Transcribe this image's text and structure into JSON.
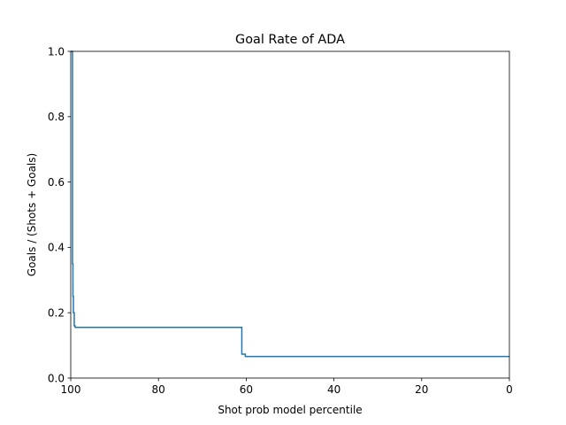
{
  "chart_data": {
    "type": "line",
    "title": "Goal Rate of ADA",
    "xlabel": "Shot prob model percentile",
    "ylabel": "Goals / (Shots + Goals)",
    "xlim": [
      100,
      0
    ],
    "ylim": [
      0.0,
      1.0
    ],
    "x_inverted": true,
    "grid": false,
    "xticks": [
      100,
      80,
      60,
      40,
      20,
      0
    ],
    "xtick_labels": [
      "100",
      "80",
      "60",
      "40",
      "20",
      "0"
    ],
    "yticks": [
      0.0,
      0.2,
      0.4,
      0.6,
      0.8,
      1.0
    ],
    "ytick_labels": [
      "0.0",
      "0.2",
      "0.4",
      "0.6",
      "0.8",
      "1.0"
    ],
    "series": [
      {
        "color": "#1f77b4",
        "step": "post",
        "x": [
          100,
          99.8,
          99.6,
          99.5,
          99.4,
          99.2,
          99.0,
          98.5,
          61.0,
          60.2,
          59.5,
          0
        ],
        "y": [
          1.0,
          1.0,
          0.35,
          0.25,
          0.2,
          0.16,
          0.155,
          0.155,
          0.073,
          0.066,
          0.066,
          0.066
        ]
      }
    ]
  }
}
